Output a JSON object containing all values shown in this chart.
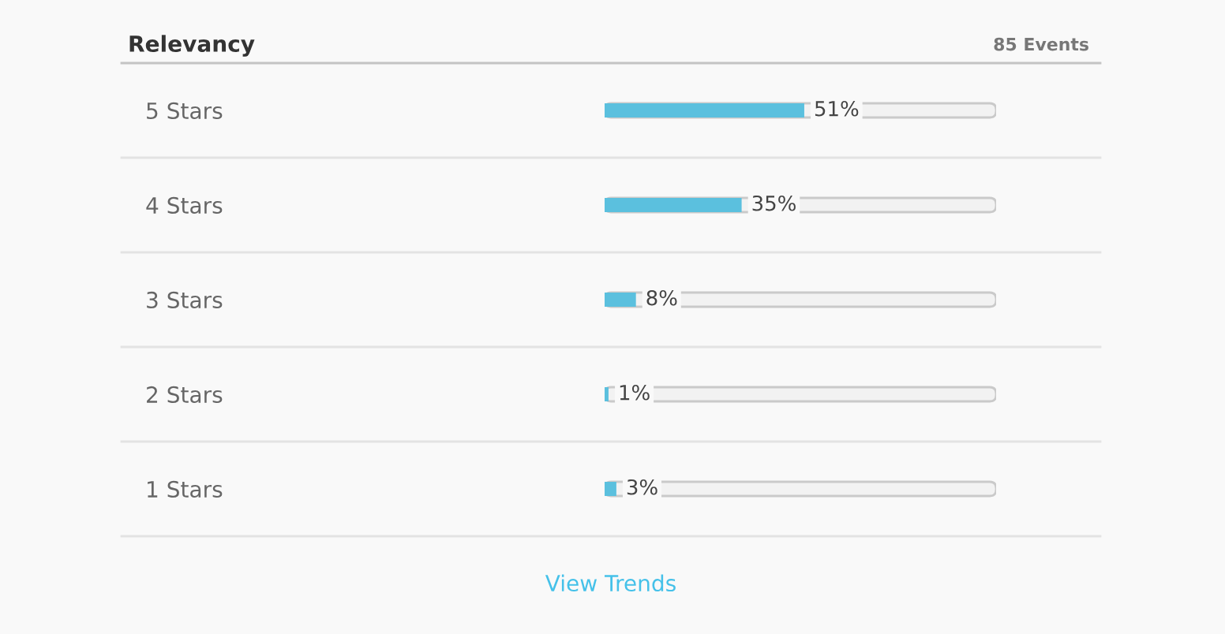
{
  "chart_data": {
    "type": "bar",
    "orientation": "horizontal",
    "title": "Relevancy",
    "subtitle": "85 Events",
    "categories": [
      "5 Stars",
      "4 Stars",
      "3 Stars",
      "2 Stars",
      "1 Stars"
    ],
    "values": [
      51,
      35,
      8,
      1,
      3
    ],
    "color": "#5bc0de",
    "value_labels": [
      "51%",
      "35%",
      "8%",
      "1%",
      "3%"
    ],
    "xlim": [
      0,
      100
    ],
    "tick_labels": "y",
    "annotations": [
      "View Trends"
    ]
  }
}
